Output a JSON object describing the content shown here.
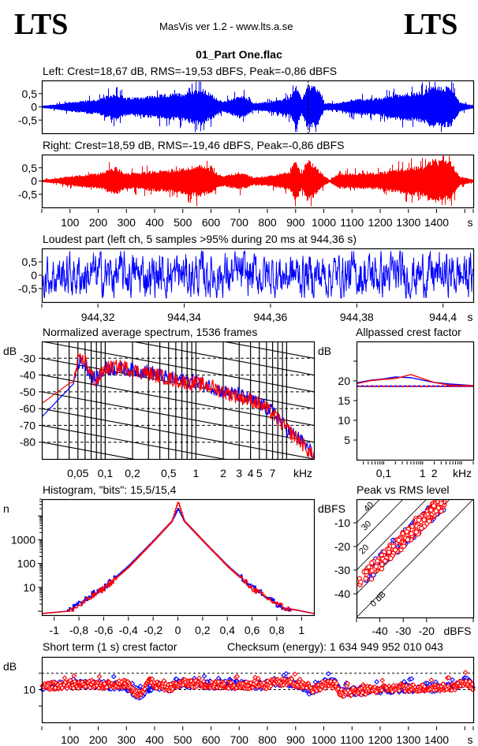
{
  "header": {
    "logo_left": "LTS",
    "logo_right": "LTS",
    "app_title": "MasVis ver 1.2 - www.lts.a.se",
    "file_name": "01_Part One.flac"
  },
  "colors": {
    "left": "#0000ff",
    "right": "#ff0000",
    "axis": "#000000",
    "background": "#ffffff"
  },
  "chart_data": [
    {
      "id": "left-waveform",
      "type": "area",
      "title": "Left: Crest=18,67 dB, RMS=-19,53 dBFS, Peak=-0,86 dBFS",
      "channel": "left",
      "xlabel": "s",
      "xlim": [
        0,
        1530
      ],
      "ylim": [
        -1,
        1
      ],
      "yticks": [
        "0,5",
        "0",
        "-0,5"
      ],
      "ytick_values": [
        0.5,
        0,
        -0.5
      ],
      "marker_time_s": 944.36,
      "envelope_points": [
        [
          0,
          0.05
        ],
        [
          50,
          0.1
        ],
        [
          100,
          0.2
        ],
        [
          200,
          0.3
        ],
        [
          260,
          0.55
        ],
        [
          300,
          0.35
        ],
        [
          400,
          0.45
        ],
        [
          500,
          0.55
        ],
        [
          560,
          0.75
        ],
        [
          600,
          0.5
        ],
        [
          640,
          0.2
        ],
        [
          700,
          0.45
        ],
        [
          720,
          0.4
        ],
        [
          750,
          0.15
        ],
        [
          800,
          0.2
        ],
        [
          850,
          0.3
        ],
        [
          880,
          0.4
        ],
        [
          900,
          0.85
        ],
        [
          920,
          0.3
        ],
        [
          940,
          0.85
        ],
        [
          960,
          0.85
        ],
        [
          980,
          0.7
        ],
        [
          1000,
          0.15
        ],
        [
          1050,
          0.15
        ],
        [
          1100,
          0.3
        ],
        [
          1200,
          0.35
        ],
        [
          1250,
          0.5
        ],
        [
          1300,
          0.55
        ],
        [
          1350,
          0.6
        ],
        [
          1380,
          0.8
        ],
        [
          1450,
          0.8
        ],
        [
          1480,
          0.2
        ],
        [
          1530,
          0.05
        ]
      ]
    },
    {
      "id": "right-waveform",
      "type": "area",
      "title": "Right: Crest=18,59 dB, RMS=-19,46 dBFS, Peak=-0,86 dBFS",
      "channel": "right",
      "xlabel": "s",
      "xlim": [
        0,
        1530
      ],
      "ylim": [
        -1,
        1
      ],
      "yticks": [
        "0,5",
        "0",
        "-0,5"
      ],
      "ytick_values": [
        0.5,
        0,
        -0.5
      ],
      "xticks": [
        "100",
        "200",
        "300",
        "400",
        "500",
        "600",
        "700",
        "800",
        "900",
        "1000",
        "1100",
        "1200",
        "1300",
        "1400"
      ],
      "xtick_values": [
        100,
        200,
        300,
        400,
        500,
        600,
        700,
        800,
        900,
        1000,
        1100,
        1200,
        1300,
        1400
      ],
      "envelope_points": [
        [
          0,
          0.05
        ],
        [
          50,
          0.1
        ],
        [
          100,
          0.2
        ],
        [
          200,
          0.3
        ],
        [
          260,
          0.55
        ],
        [
          300,
          0.3
        ],
        [
          400,
          0.4
        ],
        [
          500,
          0.5
        ],
        [
          560,
          0.65
        ],
        [
          600,
          0.45
        ],
        [
          640,
          0.2
        ],
        [
          700,
          0.35
        ],
        [
          720,
          0.3
        ],
        [
          750,
          0.15
        ],
        [
          800,
          0.2
        ],
        [
          850,
          0.3
        ],
        [
          880,
          0.4
        ],
        [
          900,
          0.85
        ],
        [
          920,
          0.3
        ],
        [
          940,
          0.85
        ],
        [
          960,
          0.7
        ],
        [
          1000,
          0.2
        ],
        [
          1020,
          0.05
        ],
        [
          1050,
          0.3
        ],
        [
          1100,
          0.3
        ],
        [
          1200,
          0.35
        ],
        [
          1250,
          0.45
        ],
        [
          1300,
          0.55
        ],
        [
          1350,
          0.6
        ],
        [
          1380,
          0.85
        ],
        [
          1450,
          0.75
        ],
        [
          1480,
          0.2
        ],
        [
          1530,
          0.05
        ]
      ]
    },
    {
      "id": "loudest-part",
      "type": "line",
      "title": "Loudest part (left  ch, 5 samples >95% during 20 ms at 944,36 s)",
      "channel": "left",
      "xlabel": "s",
      "xlim": [
        944.307,
        944.407
      ],
      "ylim": [
        -1,
        1
      ],
      "yticks": [
        "0,5",
        "0",
        "-0,5"
      ],
      "ytick_values": [
        0.5,
        0,
        -0.5
      ],
      "xticks": [
        "944,32",
        "944,34",
        "944,36",
        "944,38",
        "944,4"
      ],
      "xtick_values": [
        944.32,
        944.34,
        944.36,
        944.38,
        944.4
      ],
      "amplitude_range": [
        -0.85,
        0.9
      ]
    },
    {
      "id": "spectrum",
      "type": "line",
      "title": "Normalized average spectrum, 1536 frames",
      "ylabel": "dB",
      "xlabel": "kHz",
      "xscale": "log",
      "xlim": [
        0.02,
        20
      ],
      "ylim": [
        -90,
        -20
      ],
      "yticks": [
        "-30",
        "-40",
        "-50",
        "-60",
        "-70",
        "-80"
      ],
      "ytick_values": [
        -30,
        -40,
        -50,
        -60,
        -70,
        -80
      ],
      "xticks": [
        "0,05",
        "0,1",
        "0,2",
        "0,5",
        "1",
        "2",
        "3",
        "4",
        "5",
        "7"
      ],
      "xtick_values": [
        0.05,
        0.1,
        0.2,
        0.5,
        1,
        2,
        3,
        4,
        5,
        7
      ],
      "series": [
        {
          "name": "left",
          "x": [
            0.02,
            0.03,
            0.04,
            0.045,
            0.05,
            0.06,
            0.07,
            0.08,
            0.1,
            0.15,
            0.2,
            0.3,
            0.5,
            0.7,
            1,
            1.5,
            2,
            3,
            4,
            5,
            7,
            10,
            15,
            20
          ],
          "values": [
            -65,
            -55,
            -48,
            -45,
            -32,
            -33,
            -40,
            -43,
            -36,
            -36,
            -37,
            -38,
            -42,
            -43,
            -44,
            -47,
            -50,
            -52,
            -55,
            -57,
            -62,
            -72,
            -80,
            -88
          ]
        },
        {
          "name": "right",
          "x": [
            0.02,
            0.03,
            0.04,
            0.045,
            0.05,
            0.06,
            0.07,
            0.08,
            0.1,
            0.15,
            0.2,
            0.3,
            0.5,
            0.7,
            1,
            1.5,
            2,
            3,
            4,
            5,
            7,
            10,
            15,
            20
          ],
          "values": [
            -57,
            -50,
            -45,
            -44,
            -32,
            -31,
            -40,
            -44,
            -36,
            -35,
            -37,
            -39,
            -42,
            -44,
            -45,
            -47,
            -50,
            -53,
            -55,
            -57,
            -63,
            -72,
            -81,
            -89
          ]
        }
      ]
    },
    {
      "id": "allpassed-crest",
      "type": "line",
      "title": "Allpassed crest factor",
      "ylabel": "dB",
      "xlabel": "kHz",
      "xscale": "log",
      "xlim": [
        0.02,
        20
      ],
      "ylim": [
        0,
        30
      ],
      "yticks": [
        "20",
        "15",
        "10",
        "5"
      ],
      "ytick_values": [
        20,
        15,
        10,
        5
      ],
      "xticks": [
        "0,1",
        "1",
        "2"
      ],
      "xtick_values": [
        0.1,
        1,
        2
      ],
      "reference_crest_db": {
        "left": 18.67,
        "right": 18.59
      },
      "series": [
        {
          "name": "left",
          "x": [
            0.02,
            0.05,
            0.1,
            0.2,
            0.5,
            1,
            2,
            5,
            10,
            20
          ],
          "values": [
            19.5,
            20.2,
            20.5,
            21.0,
            20.8,
            20.2,
            19.6,
            19.2,
            19.0,
            18.8
          ]
        },
        {
          "name": "right",
          "x": [
            0.02,
            0.05,
            0.1,
            0.2,
            0.5,
            1,
            2,
            5,
            10,
            20
          ],
          "values": [
            19.3,
            20.1,
            20.4,
            20.6,
            21.6,
            20.6,
            19.6,
            18.9,
            18.8,
            18.8
          ]
        }
      ]
    },
    {
      "id": "histogram",
      "type": "line",
      "title": "Histogram, \"bits\": 15,5/15,4",
      "ylabel": "n",
      "yscale": "log",
      "ylim": [
        1,
        50000
      ],
      "yticks": [
        "1000",
        "100",
        "10"
      ],
      "ytick_values": [
        1000,
        100,
        10
      ],
      "xlim": [
        -1.1,
        1.1
      ],
      "xticks": [
        "-1",
        "-0,8",
        "-0,6",
        "-0,4",
        "-0,2",
        "0",
        "0,2",
        "0,4",
        "0,6",
        "0,8",
        "1"
      ],
      "xtick_values": [
        -1,
        -0.8,
        -0.6,
        -0.4,
        -0.2,
        0,
        0.2,
        0.4,
        0.6,
        0.8,
        1
      ],
      "series": [
        {
          "name": "left",
          "x": [
            -0.9,
            -0.8,
            -0.7,
            -0.6,
            -0.4,
            -0.2,
            -0.05,
            0,
            0.05,
            0.2,
            0.4,
            0.6,
            0.7,
            0.8,
            0.9
          ],
          "values": [
            1,
            2,
            5,
            10,
            80,
            900,
            6000,
            20000,
            6000,
            900,
            80,
            10,
            5,
            2,
            1
          ]
        },
        {
          "name": "right",
          "x": [
            -0.88,
            -0.78,
            -0.7,
            -0.6,
            -0.4,
            -0.2,
            -0.05,
            0,
            0.05,
            0.2,
            0.4,
            0.6,
            0.7,
            0.8,
            0.92
          ],
          "values": [
            1,
            2,
            4,
            9,
            70,
            850,
            6000,
            40000,
            6000,
            900,
            75,
            9,
            4,
            2,
            1
          ]
        }
      ]
    },
    {
      "id": "peak-vs-rms",
      "type": "scatter",
      "title": "Peak vs RMS level",
      "ylabel": "dBFS",
      "xlabel": "dBFS",
      "xlim": [
        -50,
        0
      ],
      "ylim": [
        -50,
        0
      ],
      "yticks": [
        "-10",
        "-20",
        "-30",
        "-40"
      ],
      "ytick_values": [
        -10,
        -20,
        -30,
        -40
      ],
      "xticks": [
        "-40",
        "-30",
        "-20"
      ],
      "xtick_values": [
        -40,
        -30,
        -20
      ],
      "crest_lines": [
        "0 dB",
        "10",
        "20",
        "30",
        "40"
      ],
      "crest_line_values": [
        0,
        10,
        20,
        30,
        40
      ],
      "series": [
        {
          "name": "left",
          "rms_range": [
            -49,
            -13
          ],
          "peak_range": [
            -42,
            -1
          ]
        },
        {
          "name": "right",
          "rms_range": [
            -50,
            -13
          ],
          "peak_range": [
            -41,
            -1
          ]
        }
      ]
    },
    {
      "id": "short-term-crest",
      "type": "scatter",
      "title": "Short term (1 s) crest factor",
      "checksum_label": "Checksum (energy):  1 634 949 952 010 043",
      "ylabel": "dB",
      "xlabel": "s",
      "xlim": [
        0,
        1530
      ],
      "ylim": [
        0,
        20
      ],
      "yticks": [
        "10"
      ],
      "ytick_values": [
        10
      ],
      "dashed_lines_db": [
        10,
        15
      ],
      "xticks": [
        "100",
        "200",
        "300",
        "400",
        "500",
        "600",
        "700",
        "800",
        "900",
        "1000",
        "1100",
        "1200",
        "1300",
        "1400"
      ],
      "xtick_values": [
        100,
        200,
        300,
        400,
        500,
        600,
        700,
        800,
        900,
        1000,
        1100,
        1200,
        1300,
        1400
      ],
      "series": [
        {
          "name": "left",
          "x": [
            0,
            100,
            200,
            300,
            330,
            350,
            380,
            400,
            450,
            500,
            600,
            700,
            800,
            820,
            900,
            950,
            960,
            1000,
            1040,
            1060,
            1100,
            1200,
            1300,
            1400,
            1470,
            1500,
            1530
          ],
          "values": [
            11,
            11.5,
            11.5,
            11,
            8.5,
            8.5,
            10.5,
            11,
            10.5,
            12,
            11.5,
            11.5,
            11,
            12.5,
            12,
            9.5,
            9.5,
            12,
            12,
            9.5,
            9.5,
            10,
            10.5,
            10.5,
            11,
            13,
            11
          ]
        },
        {
          "name": "right",
          "x": [
            0,
            100,
            200,
            300,
            330,
            350,
            380,
            400,
            450,
            500,
            600,
            700,
            800,
            820,
            900,
            950,
            960,
            1000,
            1040,
            1060,
            1100,
            1200,
            1300,
            1400,
            1470,
            1500,
            1530
          ],
          "values": [
            11,
            11.5,
            11.2,
            12,
            9,
            9,
            13,
            11.5,
            10.5,
            12,
            11.5,
            11.3,
            11,
            12.5,
            12,
            11,
            10,
            11.5,
            11.5,
            9,
            9,
            10.2,
            10.5,
            10.5,
            11,
            12.5,
            11
          ]
        }
      ]
    }
  ]
}
